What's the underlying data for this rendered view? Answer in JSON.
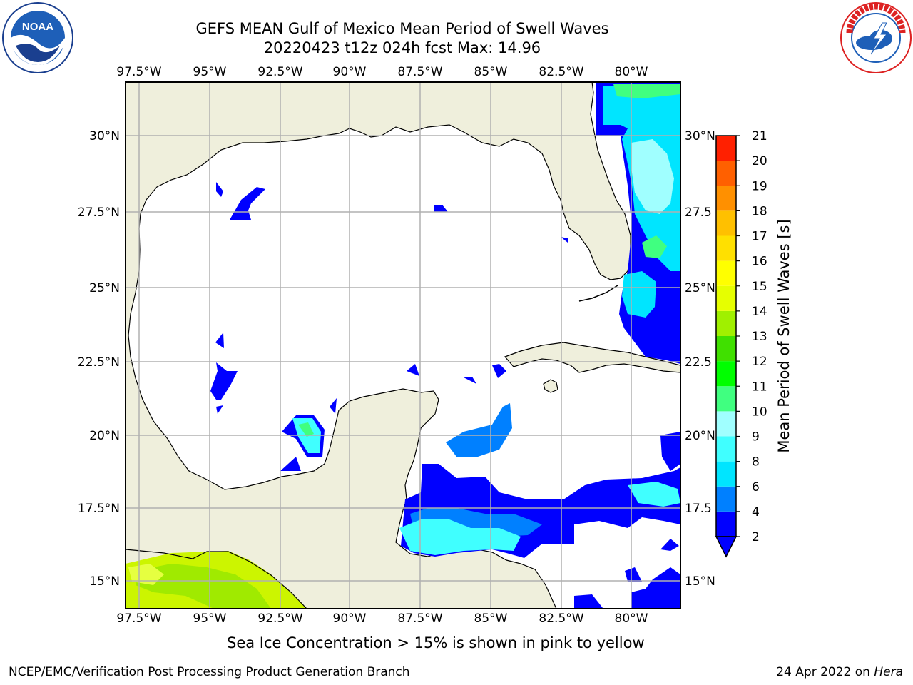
{
  "header": {
    "title_line1": "GEFS MEAN Gulf of Mexico Mean Period of Swell Waves",
    "title_line2": "20220423 t12z 024h fcst   Max: 14.96"
  },
  "logos": {
    "left": "NOAA",
    "right": "NATIONAL WEATHER SERVICE"
  },
  "map": {
    "lon_labels": [
      "97.5°W",
      "95°W",
      "92.5°W",
      "90°W",
      "87.5°W",
      "85°W",
      "82.5°W",
      "80°W"
    ],
    "lat_labels": [
      "30°N",
      "27.5°N",
      "25°N",
      "22.5°N",
      "20°N",
      "17.5°N",
      "15°N"
    ],
    "lat_labels_right": [
      "30°N",
      "27.5",
      "25°N",
      "22.5",
      "20°N",
      "17.5",
      "15°N"
    ],
    "land_color": "#efefdc",
    "water_color": "#ffffff",
    "grid_color": "#b0b0b0"
  },
  "colorbar": {
    "title": "Mean Period of Swell Waves [s]",
    "ticks": [
      "2",
      "4",
      "6",
      "8",
      "9",
      "10",
      "11",
      "12",
      "13",
      "14",
      "15",
      "16",
      "17",
      "18",
      "19",
      "20",
      "21"
    ],
    "colors": [
      "#0000ff",
      "#0080ff",
      "#00e5ff",
      "#40ffff",
      "#a0ffff",
      "#40ff80",
      "#00ff00",
      "#40e000",
      "#a0f000",
      "#e6ff00",
      "#ffff00",
      "#ffe000",
      "#ffc000",
      "#ff9000",
      "#ff6000",
      "#ff2000"
    ]
  },
  "note": "Sea Ice Concentration > 15% is shown in pink to yellow",
  "footer": {
    "left": "NCEP/EMC/Verification Post Processing Product Generation Branch",
    "date": "24 Apr 2022 on ",
    "host": "Hera"
  }
}
